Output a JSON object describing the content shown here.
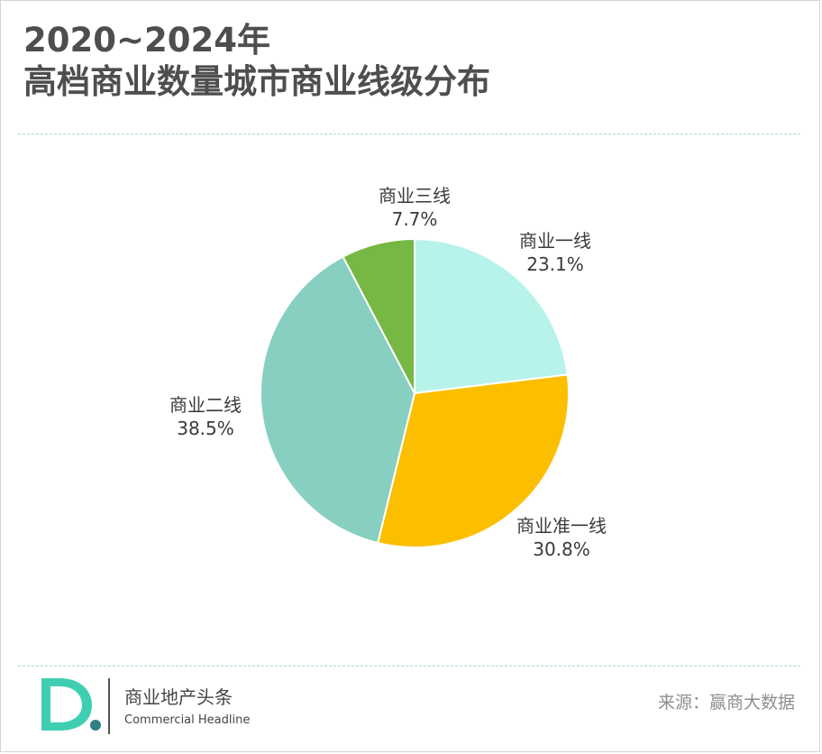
{
  "title_line1": "2020~2024年",
  "title_line2": "高档商业数量城市商业线级分布",
  "chart_data": {
    "type": "pie",
    "title": "2020~2024年 高档商业数量城市商业线级分布",
    "slices": [
      {
        "name": "商业一线",
        "value": 23.1,
        "label": "23.1%",
        "color": "#b8f3eb"
      },
      {
        "name": "商业准一线",
        "value": 30.8,
        "label": "30.8%",
        "color": "#fcbf00"
      },
      {
        "name": "商业二线",
        "value": 38.5,
        "label": "38.5%",
        "color": "#87cfc1"
      },
      {
        "name": "商业三线",
        "value": 7.7,
        "label": "7.7%",
        "color": "#76b843"
      }
    ],
    "start": "12 o'clock",
    "direction": "clockwise",
    "legend": "none"
  },
  "footer": {
    "brand_cn": "商业地产头条",
    "brand_en": "Commercial Headline",
    "source": "来源：赢商大数据",
    "logo_colors": [
      "#3fcfb0",
      "#2f7f87"
    ]
  }
}
